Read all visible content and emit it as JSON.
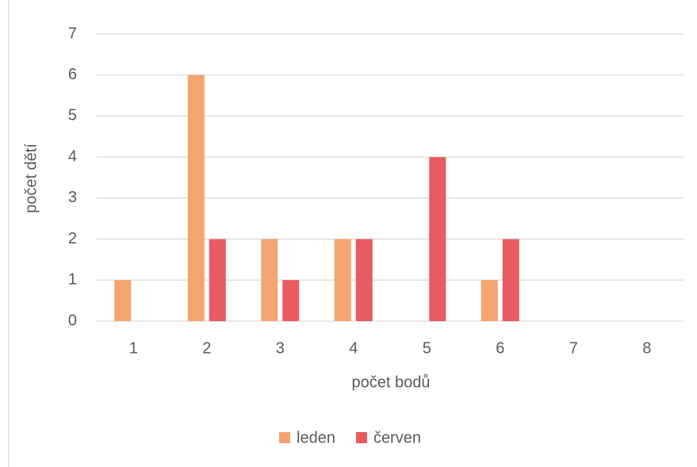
{
  "chart_data": {
    "type": "bar",
    "xlabel": "počet bodů",
    "ylabel": "počet dětí",
    "categories": [
      "1",
      "2",
      "3",
      "4",
      "5",
      "6",
      "7",
      "8"
    ],
    "series": [
      {
        "name": "leden",
        "color": "#f3a46f",
        "values": [
          1,
          6,
          2,
          2,
          0,
          1,
          0,
          0
        ]
      },
      {
        "name": "červen",
        "color": "#e85b60",
        "values": [
          0,
          2,
          1,
          2,
          4,
          2,
          0,
          0
        ]
      }
    ],
    "ylim": [
      0,
      7
    ],
    "yticks": [
      0,
      1,
      2,
      3,
      4,
      5,
      6,
      7
    ],
    "grid": true,
    "legend": "bottom"
  }
}
